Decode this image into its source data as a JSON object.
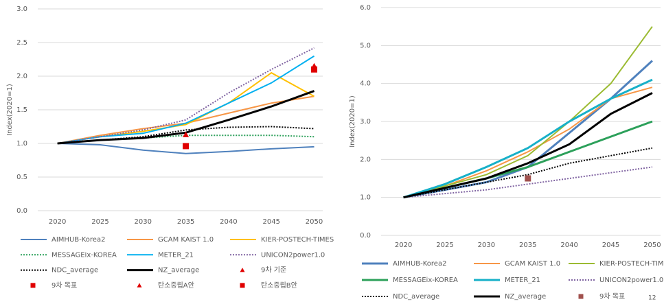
{
  "chart_data": [
    {
      "type": "line",
      "y_label": "Index(2020=1)",
      "xlim": [
        2017.7,
        2051
      ],
      "xticks": [
        2020,
        2025,
        2030,
        2035,
        2040,
        2045,
        2050
      ],
      "ylim": [
        0,
        3
      ],
      "yticks": [
        {
          "value": 0,
          "label": "0.0"
        },
        {
          "value": 0.5,
          "label": "0.5"
        },
        {
          "value": 1,
          "label": "1.0"
        },
        {
          "value": 1.5,
          "label": "1.5"
        },
        {
          "value": 2,
          "label": "2.0"
        },
        {
          "value": 2.5,
          "label": "2.5"
        },
        {
          "value": 3,
          "label": "3.0"
        }
      ],
      "grid": true,
      "series": [
        {
          "name": "AIMHUB-Korea2",
          "color": "#4f81bd",
          "x": [
            2020,
            2025,
            2030,
            2035,
            2040,
            2045,
            2050
          ],
          "values": [
            1,
            0.98,
            0.9,
            0.85,
            0.88,
            0.92,
            0.95
          ]
        },
        {
          "name": "GCAM KAIST 1.0",
          "color": "#f79646",
          "x": [
            2020,
            2025,
            2030,
            2035,
            2040,
            2045,
            2050
          ],
          "values": [
            1,
            1.12,
            1.22,
            1.3,
            1.45,
            1.6,
            1.7
          ]
        },
        {
          "name": "KIER-POSTECH-TIMES",
          "color": "#ffc000",
          "x": [
            2020,
            2025,
            2030,
            2035,
            2040,
            2045,
            2050
          ],
          "values": [
            1,
            1.1,
            1.18,
            1.28,
            1.6,
            2.05,
            1.7
          ]
        },
        {
          "name": "MESSAGEix-KOREA",
          "color": "#2ca05a",
          "dash": "dot",
          "x": [
            2020,
            2025,
            2030,
            2035,
            2040,
            2045,
            2050
          ],
          "values": [
            1,
            1.05,
            1.08,
            1.12,
            1.12,
            1.12,
            1.1
          ]
        },
        {
          "name": "METER_21",
          "color": "#00b0f0",
          "x": [
            2020,
            2025,
            2030,
            2035,
            2040,
            2045,
            2050
          ],
          "values": [
            1,
            1.1,
            1.15,
            1.3,
            1.6,
            1.9,
            2.3
          ]
        },
        {
          "name": "UNICON2power1.0",
          "color": "#8064a2",
          "dash": "dot",
          "x": [
            2020,
            2025,
            2030,
            2035,
            2040,
            2045,
            2050
          ],
          "values": [
            1,
            1.1,
            1.2,
            1.35,
            1.75,
            2.1,
            2.42
          ]
        },
        {
          "name": "NDC_average",
          "color": "#000000",
          "dash": "dot",
          "x": [
            2020,
            2025,
            2030,
            2035,
            2040,
            2045,
            2050
          ],
          "values": [
            1,
            1.05,
            1.1,
            1.2,
            1.24,
            1.25,
            1.22
          ]
        },
        {
          "name": "NZ_average",
          "color": "#000000",
          "width": 3,
          "x": [
            2020,
            2025,
            2030,
            2035,
            2040,
            2045,
            2050
          ],
          "values": [
            1,
            1.05,
            1.08,
            1.16,
            1.35,
            1.55,
            1.78
          ]
        },
        {
          "name": "9차 기준",
          "color": "#e00000",
          "marker": "triangle",
          "x": [
            2035
          ],
          "values": [
            1.13
          ]
        },
        {
          "name": "9차 목표",
          "color": "#e00000",
          "marker": "square",
          "x": [
            2035
          ],
          "values": [
            0.96
          ]
        },
        {
          "name": "탄소중립A안",
          "color": "#e00000",
          "marker": "triangle",
          "x": [
            2050
          ],
          "values": [
            2.15
          ]
        },
        {
          "name": "탄소중립B안",
          "color": "#e00000",
          "marker": "square",
          "x": [
            2050
          ],
          "values": [
            2.1
          ]
        }
      ]
    },
    {
      "type": "line",
      "y_label": "Index(2020=1)",
      "xlim": [
        2017.3,
        2051
      ],
      "xticks": [
        2020,
        2025,
        2030,
        2035,
        2040,
        2045,
        2050
      ],
      "ylim": [
        0,
        6
      ],
      "yticks": [
        {
          "value": 0,
          "label": "0.0"
        },
        {
          "value": 1,
          "label": "1.0"
        },
        {
          "value": 2,
          "label": "2.0"
        },
        {
          "value": 3,
          "label": "3.0"
        },
        {
          "value": 4,
          "label": "4.0"
        },
        {
          "value": 5,
          "label": "5.0"
        },
        {
          "value": 6,
          "label": "6.0"
        }
      ],
      "grid": true,
      "series": [
        {
          "name": "AIMHUB-Korea2",
          "color": "#4f81bd",
          "width": 3,
          "x": [
            2020,
            2025,
            2030,
            2035,
            2040,
            2045,
            2050
          ],
          "values": [
            1,
            1.2,
            1.4,
            1.8,
            2.7,
            3.6,
            4.6
          ]
        },
        {
          "name": "GCAM KAIST 1.0",
          "color": "#f79646",
          "x": [
            2020,
            2025,
            2030,
            2035,
            2040,
            2045,
            2050
          ],
          "values": [
            1,
            1.3,
            1.7,
            2.2,
            2.8,
            3.6,
            3.9
          ]
        },
        {
          "name": "KIER-POSTECH-TIMES",
          "color": "#9bbb32",
          "x": [
            2020,
            2025,
            2030,
            2035,
            2040,
            2045,
            2050
          ],
          "values": [
            1,
            1.3,
            1.6,
            2.1,
            3.0,
            4.0,
            5.5
          ]
        },
        {
          "name": "MESSAGEix-KOREA",
          "color": "#2ca05a",
          "width": 3,
          "x": [
            2020,
            2025,
            2030,
            2035,
            2040,
            2045,
            2050
          ],
          "values": [
            1,
            1.25,
            1.5,
            1.8,
            2.2,
            2.6,
            3.0
          ]
        },
        {
          "name": "METER_21",
          "color": "#17b0c8",
          "width": 3,
          "x": [
            2020,
            2025,
            2030,
            2035,
            2040,
            2045,
            2050
          ],
          "values": [
            1,
            1.35,
            1.8,
            2.3,
            3.0,
            3.6,
            4.1
          ]
        },
        {
          "name": "UNICON2power1.0",
          "color": "#8064a2",
          "dash": "dot",
          "x": [
            2020,
            2025,
            2030,
            2035,
            2040,
            2045,
            2050
          ],
          "values": [
            1,
            1.1,
            1.2,
            1.35,
            1.5,
            1.65,
            1.8
          ]
        },
        {
          "name": "NDC_average",
          "color": "#000000",
          "dash": "dot",
          "x": [
            2020,
            2025,
            2030,
            2035,
            2040,
            2045,
            2050
          ],
          "values": [
            1,
            1.2,
            1.4,
            1.6,
            1.9,
            2.1,
            2.3
          ]
        },
        {
          "name": "NZ_average",
          "color": "#000000",
          "width": 3,
          "x": [
            2020,
            2025,
            2030,
            2035,
            2040,
            2045,
            2050
          ],
          "values": [
            1,
            1.25,
            1.5,
            1.9,
            2.4,
            3.2,
            3.75
          ]
        },
        {
          "name": "9차 목표",
          "color": "#a0504d",
          "marker": "square",
          "x": [
            2035
          ],
          "values": [
            1.5
          ]
        }
      ]
    }
  ],
  "page_number": "12"
}
